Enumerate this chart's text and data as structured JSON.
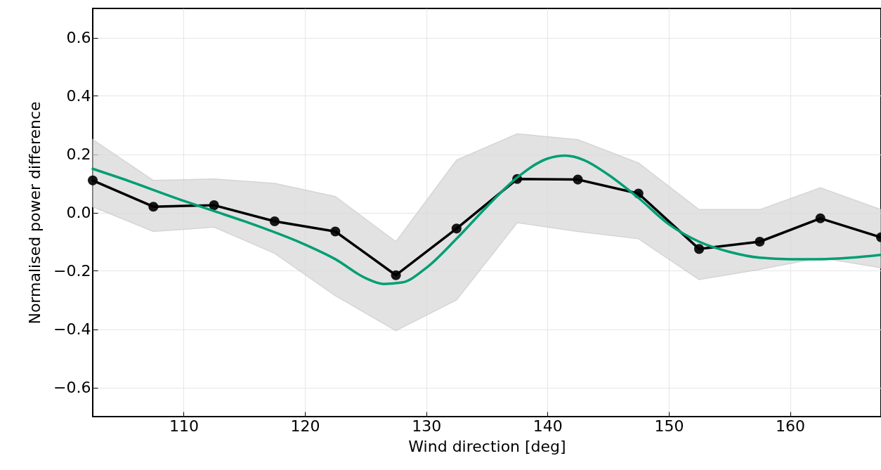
{
  "chart_data": {
    "type": "line",
    "xlabel": "Wind direction [deg]",
    "ylabel": "Normalised power difference",
    "xlim": [
      102.5,
      167.5
    ],
    "xticks": [
      110,
      120,
      130,
      140,
      150,
      160
    ],
    "ylim": [
      -0.7,
      0.7
    ],
    "yticks": [
      {
        "value": -0.6,
        "label": "−0.6"
      },
      {
        "value": -0.4,
        "label": "−0.4"
      },
      {
        "value": -0.2,
        "label": "−0.2"
      },
      {
        "value": 0,
        "label": "0.0"
      },
      {
        "value": 0.2,
        "label": "0.2"
      },
      {
        "value": 0.4,
        "label": "0.4"
      },
      {
        "value": 0.6,
        "label": "0.6"
      }
    ],
    "grid": true,
    "marker": "circle",
    "line_style": "solid",
    "series": [
      {
        "color": "#000000",
        "x": [
          102.5,
          107.5,
          112.5,
          117.5,
          122.5,
          127.5,
          132.5,
          137.5,
          142.5,
          147.5,
          152.5,
          157.5,
          162.5,
          167.5
        ],
        "values": [
          0.11,
          0.02,
          0.025,
          -0.03,
          -0.065,
          -0.215,
          -0.055,
          0.115,
          0.113,
          0.065,
          -0.125,
          -0.1,
          -0.02,
          -0.085
        ],
        "upper": [
          0.25,
          0.11,
          0.115,
          0.1,
          0.055,
          -0.1,
          0.18,
          0.27,
          0.25,
          0.17,
          0.01,
          0.01,
          0.085,
          0.01
        ],
        "lower": [
          0.02,
          -0.065,
          -0.05,
          -0.14,
          -0.285,
          -0.405,
          -0.3,
          -0.035,
          -0.065,
          -0.09,
          -0.23,
          -0.195,
          -0.155,
          -0.19
        ]
      },
      {
        "color": "#009e73",
        "marker": "none",
        "x": [
          102.5,
          105,
          110,
          112.5,
          115,
          120,
          122.5,
          125,
          126.5,
          128,
          130,
          132.5,
          135,
          137.5,
          140,
          141.5,
          143,
          145,
          147.5,
          150,
          152.5,
          155,
          157.5,
          160,
          162.5,
          165,
          167.5
        ],
        "values": [
          0.15,
          0.115,
          0.04,
          0.005,
          -0.03,
          -0.11,
          -0.16,
          -0.225,
          -0.245,
          -0.24,
          -0.19,
          -0.09,
          0.02,
          0.12,
          0.185,
          0.195,
          0.18,
          0.13,
          0.05,
          -0.04,
          -0.1,
          -0.135,
          -0.155,
          -0.16,
          -0.16,
          -0.155,
          -0.145
        ]
      }
    ]
  }
}
